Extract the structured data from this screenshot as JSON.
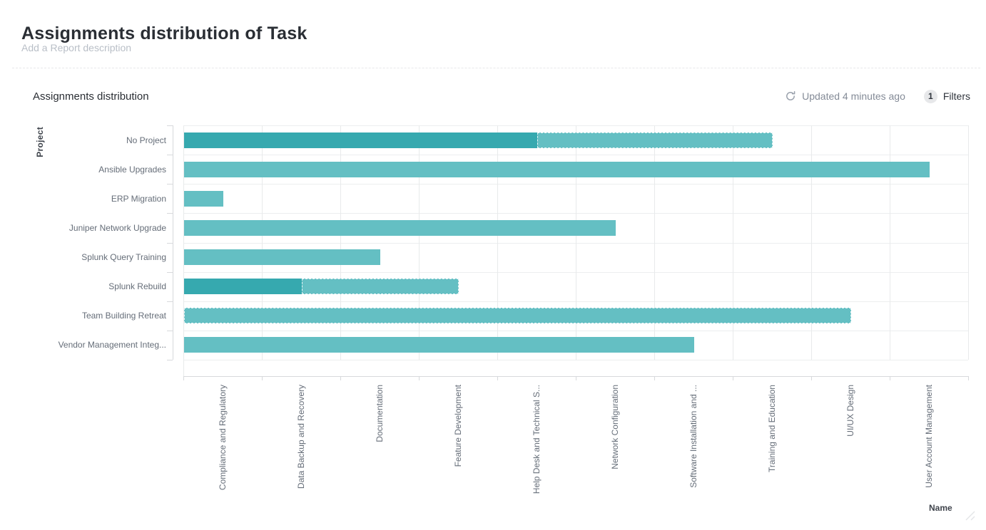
{
  "page": {
    "title": "Assignments distribution of Task",
    "description_placeholder": "Add a Report description"
  },
  "card": {
    "title": "Assignments distribution",
    "updated_text": "Updated 4 minutes ago",
    "filters_count": "1",
    "filters_label": "Filters"
  },
  "colors": {
    "bar_dark": "#36a9af",
    "bar_light": "#64bfc3",
    "grid_v": "#e8eaeb",
    "grid_h": "#eceeef",
    "axis": "#d7d9dc",
    "tick_text": "#656d78",
    "axis_name_text": "#3f444c"
  },
  "chart_data": {
    "type": "bar",
    "orientation": "horizontal",
    "title": "Assignments distribution",
    "xlabel": "Name",
    "ylabel": "Project",
    "xlim": [
      0,
      10
    ],
    "grid": true,
    "legend": false,
    "x_ticks": [
      "Compliance and Regulatory",
      "Data Backup and Recovery",
      "Documentation",
      "Feature Development",
      "Help Desk and Technical S...",
      "Network Configuration",
      "Software Installation and ...",
      "Training and Education",
      "UI/UX Design",
      "User Account Management"
    ],
    "categories": [
      "No Project",
      "Ansible Upgrades",
      "ERP Migration",
      "Juniper Network Upgrade",
      "Splunk Query Training",
      "Splunk Rebuild",
      "Team Building Retreat",
      "Vendor Management Integ..."
    ],
    "bars": [
      {
        "project": "No Project",
        "segments": [
          {
            "value": 4.5,
            "shade": "dark",
            "dashed": false
          },
          {
            "value": 3.0,
            "shade": "light",
            "dashed": true
          }
        ]
      },
      {
        "project": "Ansible Upgrades",
        "segments": [
          {
            "value": 9.5,
            "shade": "light",
            "dashed": false
          }
        ]
      },
      {
        "project": "ERP Migration",
        "segments": [
          {
            "value": 0.5,
            "shade": "light",
            "dashed": false
          }
        ]
      },
      {
        "project": "Juniper Network Upgrade",
        "segments": [
          {
            "value": 5.5,
            "shade": "light",
            "dashed": false
          }
        ]
      },
      {
        "project": "Splunk Query Training",
        "segments": [
          {
            "value": 2.5,
            "shade": "light",
            "dashed": false
          }
        ]
      },
      {
        "project": "Splunk Rebuild",
        "segments": [
          {
            "value": 1.5,
            "shade": "dark",
            "dashed": false
          },
          {
            "value": 2.0,
            "shade": "light",
            "dashed": true
          }
        ]
      },
      {
        "project": "Team Building Retreat",
        "segments": [
          {
            "value": 8.5,
            "shade": "light",
            "dashed": true
          }
        ]
      },
      {
        "project": "Vendor Management Integ...",
        "segments": [
          {
            "value": 6.5,
            "shade": "light",
            "dashed": false
          }
        ]
      }
    ]
  }
}
